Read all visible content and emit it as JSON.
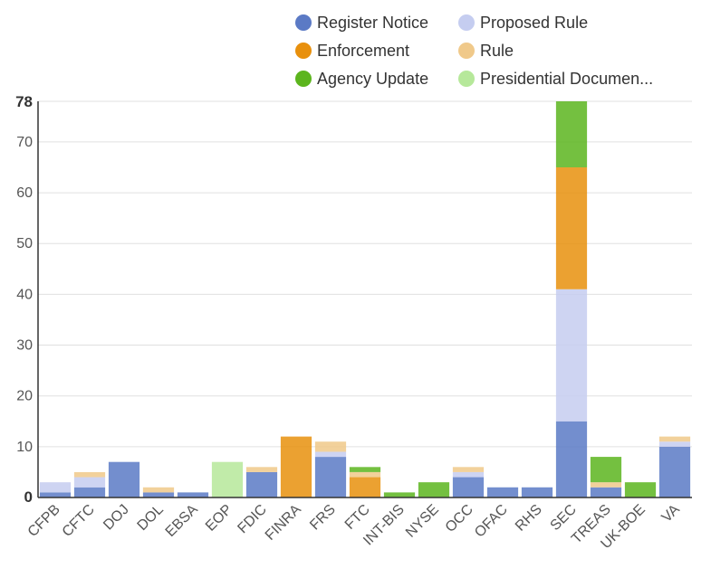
{
  "chart_data": {
    "type": "bar",
    "stacked": true,
    "categories": [
      "CFPB",
      "CFTC",
      "DOJ",
      "DOL",
      "EBSA",
      "EOP",
      "FDIC",
      "FINRA",
      "FRS",
      "FTC",
      "INT-BIS",
      "NYSE",
      "OCC",
      "OFAC",
      "RHS",
      "SEC",
      "TREAS",
      "UK-BOE",
      "VA"
    ],
    "series": [
      {
        "name": "Register Notice",
        "color": "#5b7ac5",
        "values": [
          1,
          2,
          7,
          1,
          1,
          0,
          5,
          0,
          8,
          0,
          0,
          0,
          4,
          2,
          2,
          15,
          2,
          0,
          10
        ]
      },
      {
        "name": "Proposed Rule",
        "color": "#c5cdf0",
        "values": [
          2,
          2,
          0,
          0,
          0,
          0,
          0,
          0,
          1,
          0,
          0,
          0,
          1,
          0,
          0,
          26,
          0,
          0,
          1
        ]
      },
      {
        "name": "Enforcement",
        "color": "#e8900d",
        "values": [
          0,
          0,
          0,
          0,
          0,
          0,
          0,
          12,
          0,
          4,
          0,
          0,
          0,
          0,
          0,
          24,
          0,
          0,
          0
        ]
      },
      {
        "name": "Rule",
        "color": "#f0c98a",
        "values": [
          0,
          1,
          0,
          1,
          0,
          0,
          1,
          0,
          2,
          1,
          0,
          0,
          1,
          0,
          0,
          0,
          1,
          0,
          1
        ]
      },
      {
        "name": "Agency Update",
        "color": "#5cb51e",
        "values": [
          0,
          0,
          0,
          0,
          0,
          0,
          0,
          0,
          0,
          1,
          1,
          3,
          0,
          0,
          0,
          13,
          5,
          3,
          0
        ]
      },
      {
        "name": "Presidential Documen...",
        "color": "#b6e89a",
        "values": [
          0,
          0,
          0,
          0,
          0,
          7,
          0,
          0,
          0,
          0,
          0,
          0,
          0,
          0,
          0,
          0,
          0,
          0,
          0
        ]
      }
    ],
    "y_ticks": [
      0,
      10,
      20,
      30,
      40,
      50,
      60,
      70
    ],
    "y_max_label": "78",
    "ylim": [
      0,
      78
    ],
    "grid": true,
    "legend_position": "top",
    "title": "",
    "xlabel": "",
    "ylabel": ""
  }
}
